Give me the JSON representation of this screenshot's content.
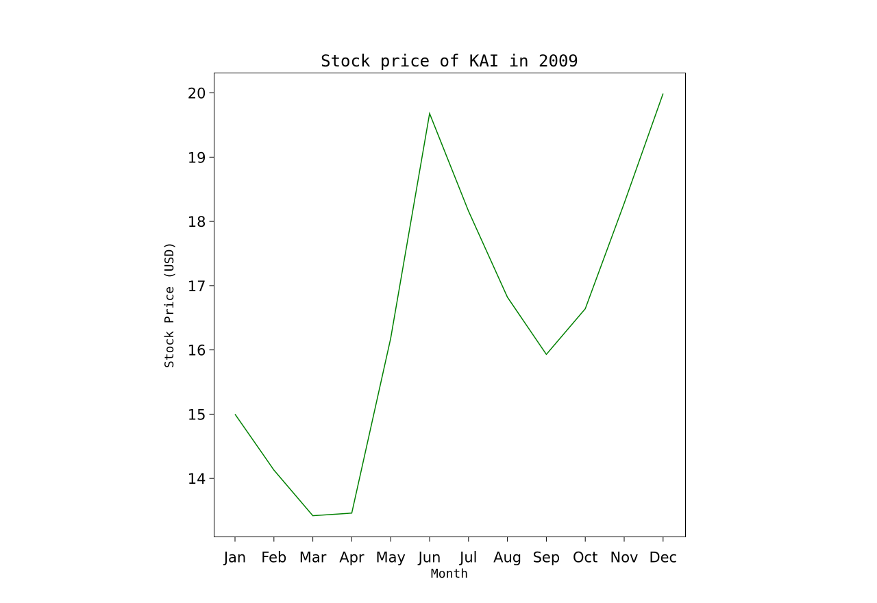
{
  "chart_data": {
    "type": "line",
    "title": "Stock price of KAI in 2009",
    "xlabel": "Month",
    "ylabel": "Stock Price (USD)",
    "categories": [
      "Jan",
      "Feb",
      "Mar",
      "Apr",
      "May",
      "Jun",
      "Jul",
      "Aug",
      "Sep",
      "Oct",
      "Nov",
      "Dec"
    ],
    "series": [
      {
        "values": [
          15.0,
          14.13,
          13.42,
          13.46,
          16.18,
          19.68,
          18.16,
          16.82,
          15.93,
          16.64,
          18.28,
          19.99
        ],
        "color": "#008000"
      }
    ],
    "yticks": [
      14,
      15,
      16,
      17,
      18,
      19,
      20
    ],
    "ylim": [
      13.09,
      20.31
    ],
    "grid": false,
    "legend": "none"
  }
}
